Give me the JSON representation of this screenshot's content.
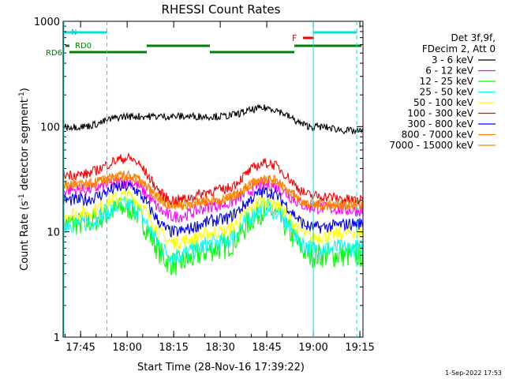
{
  "chart_data": {
    "type": "line",
    "title": "RHESSI Count Rates",
    "xlabel": "Start Time (28-Nov-16 17:39:22)",
    "ylabel_main": "Count Rate (s",
    "ylabel_exp": "-1",
    "ylabel_rest": " detector segment",
    "ylabel_exp2": "-1",
    "ylabel_close": ")",
    "yscale": "log",
    "ylim": [
      1,
      1000
    ],
    "xlim": [
      "17:39:22",
      "19:16:00"
    ],
    "x_ticks": [
      "17:45",
      "18:00",
      "18:15",
      "18:30",
      "18:45",
      "19:00",
      "19:15"
    ],
    "y_ticks": [
      "1",
      "10",
      "100",
      "1000"
    ],
    "legend": {
      "header1": "Det 3f,9f,",
      "header2": "FDecim 2, Att 0",
      "position": "right"
    },
    "series": [
      {
        "name": "3 - 6 keV",
        "color": "#000000",
        "values_at_ticks": [
          100,
          125,
          125,
          125,
          150,
          100,
          90
        ]
      },
      {
        "name": "6 - 12 keV",
        "color": "#ff00ff",
        "values_at_ticks": [
          25,
          30,
          14,
          18,
          28,
          17,
          16
        ]
      },
      {
        "name": "12 - 25 keV",
        "color": "#00ff00",
        "values_at_ticks": [
          12,
          17,
          5,
          7,
          16,
          6,
          6
        ]
      },
      {
        "name": "25 - 50 keV",
        "color": "#00ffff",
        "values_at_ticks": [
          12,
          18,
          6,
          8,
          17,
          7,
          7
        ]
      },
      {
        "name": "50 - 100 keV",
        "color": "#ffff00",
        "values_at_ticks": [
          15,
          22,
          8,
          10,
          20,
          9,
          10
        ]
      },
      {
        "name": "100 - 300 keV",
        "color": "#ff0000",
        "values_at_ticks": [
          35,
          50,
          20,
          25,
          45,
          22,
          20
        ]
      },
      {
        "name": "300 - 800 keV",
        "color": "#0000ff",
        "values_at_ticks": [
          20,
          27,
          10,
          13,
          24,
          11,
          12
        ]
      },
      {
        "name": "800 - 7000 keV",
        "color": "#ff8000",
        "values_at_ticks": [
          28,
          34,
          18,
          20,
          32,
          18,
          18
        ]
      },
      {
        "name": "7000 - 15000 keV",
        "color": "#ff8000",
        "values_at_ticks": [
          28,
          34,
          18,
          20,
          32,
          18,
          18
        ]
      }
    ],
    "annotations": {
      "night_label": "N",
      "flare_label": "F",
      "saa_label_1": "RD0",
      "saa_label_2": "RD6"
    },
    "night_intervals": [
      [
        "17:39:22",
        "17:53:30"
      ],
      [
        "19:00:00",
        "19:14:00"
      ]
    ],
    "vertical_lines_solid": [
      "17:39:22",
      "19:00:00"
    ],
    "vertical_lines_dashed": [
      "17:53:30",
      "19:14:00"
    ],
    "footer_date": "1-Sep-2022 17:53"
  }
}
